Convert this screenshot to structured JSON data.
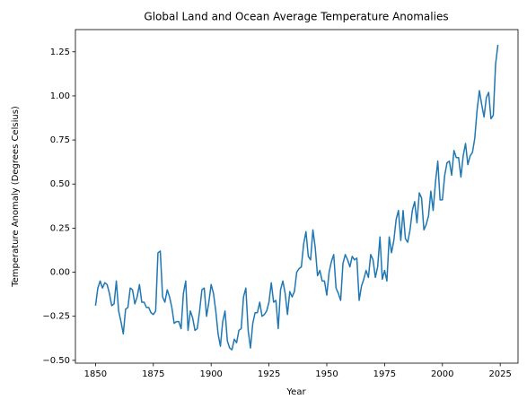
{
  "chart_data": {
    "type": "line",
    "title": "Global Land and Ocean Average Temperature Anomalies",
    "xlabel": "Year",
    "ylabel": "Temperature Anomaly (Degrees Celsius)",
    "x": [
      1850,
      1851,
      1852,
      1853,
      1854,
      1855,
      1856,
      1857,
      1858,
      1859,
      1860,
      1861,
      1862,
      1863,
      1864,
      1865,
      1866,
      1867,
      1868,
      1869,
      1870,
      1871,
      1872,
      1873,
      1874,
      1875,
      1876,
      1877,
      1878,
      1879,
      1880,
      1881,
      1882,
      1883,
      1884,
      1885,
      1886,
      1887,
      1888,
      1889,
      1890,
      1891,
      1892,
      1893,
      1894,
      1895,
      1896,
      1897,
      1898,
      1899,
      1900,
      1901,
      1902,
      1903,
      1904,
      1905,
      1906,
      1907,
      1908,
      1909,
      1910,
      1911,
      1912,
      1913,
      1914,
      1915,
      1916,
      1917,
      1918,
      1919,
      1920,
      1921,
      1922,
      1923,
      1924,
      1925,
      1926,
      1927,
      1928,
      1929,
      1930,
      1931,
      1932,
      1933,
      1934,
      1935,
      1936,
      1937,
      1938,
      1939,
      1940,
      1941,
      1942,
      1943,
      1944,
      1945,
      1946,
      1947,
      1948,
      1949,
      1950,
      1951,
      1952,
      1953,
      1954,
      1955,
      1956,
      1957,
      1958,
      1959,
      1960,
      1961,
      1962,
      1963,
      1964,
      1965,
      1966,
      1967,
      1968,
      1969,
      1970,
      1971,
      1972,
      1973,
      1974,
      1975,
      1976,
      1977,
      1978,
      1979,
      1980,
      1981,
      1982,
      1983,
      1984,
      1985,
      1986,
      1987,
      1988,
      1989,
      1990,
      1991,
      1992,
      1993,
      1994,
      1995,
      1996,
      1997,
      1998,
      1999,
      2000,
      2001,
      2002,
      2003,
      2004,
      2005,
      2006,
      2007,
      2008,
      2009,
      2010,
      2011,
      2012,
      2013,
      2014,
      2015,
      2016,
      2017,
      2018,
      2019,
      2020,
      2021,
      2022,
      2023,
      2024
    ],
    "series": [
      {
        "name": "Temperature Anomaly",
        "color": "#1f77b4",
        "values": [
          -0.19,
          -0.09,
          -0.05,
          -0.09,
          -0.06,
          -0.07,
          -0.12,
          -0.19,
          -0.18,
          -0.05,
          -0.22,
          -0.28,
          -0.35,
          -0.21,
          -0.2,
          -0.09,
          -0.1,
          -0.18,
          -0.14,
          -0.07,
          -0.17,
          -0.17,
          -0.2,
          -0.2,
          -0.23,
          -0.24,
          -0.22,
          0.11,
          0.12,
          -0.14,
          -0.17,
          -0.1,
          -0.14,
          -0.2,
          -0.29,
          -0.28,
          -0.28,
          -0.32,
          -0.12,
          -0.05,
          -0.33,
          -0.22,
          -0.26,
          -0.33,
          -0.32,
          -0.22,
          -0.1,
          -0.09,
          -0.25,
          -0.17,
          -0.07,
          -0.12,
          -0.22,
          -0.35,
          -0.42,
          -0.28,
          -0.22,
          -0.39,
          -0.43,
          -0.44,
          -0.38,
          -0.4,
          -0.33,
          -0.32,
          -0.14,
          -0.09,
          -0.33,
          -0.43,
          -0.29,
          -0.23,
          -0.23,
          -0.17,
          -0.25,
          -0.24,
          -0.22,
          -0.17,
          -0.06,
          -0.17,
          -0.16,
          -0.32,
          -0.1,
          -0.05,
          -0.12,
          -0.24,
          -0.11,
          -0.14,
          -0.11,
          0.0,
          0.02,
          0.03,
          0.16,
          0.23,
          0.09,
          0.07,
          0.24,
          0.14,
          -0.02,
          0.01,
          -0.05,
          -0.05,
          -0.13,
          0.0,
          0.06,
          0.1,
          -0.09,
          -0.12,
          -0.16,
          0.05,
          0.1,
          0.07,
          0.03,
          0.09,
          0.07,
          0.08,
          -0.16,
          -0.08,
          -0.04,
          0.01,
          -0.03,
          0.1,
          0.07,
          -0.03,
          0.03,
          0.2,
          -0.04,
          0.01,
          -0.05,
          0.2,
          0.11,
          0.18,
          0.3,
          0.35,
          0.18,
          0.35,
          0.19,
          0.17,
          0.24,
          0.35,
          0.4,
          0.28,
          0.45,
          0.42,
          0.24,
          0.27,
          0.32,
          0.46,
          0.35,
          0.51,
          0.63,
          0.41,
          0.41,
          0.55,
          0.62,
          0.63,
          0.55,
          0.69,
          0.65,
          0.65,
          0.54,
          0.66,
          0.73,
          0.61,
          0.66,
          0.68,
          0.76,
          0.92,
          1.03,
          0.95,
          0.88,
          0.99,
          1.02,
          0.87,
          0.89,
          1.18,
          1.29
        ]
      }
    ],
    "xlim": [
      1841.3,
      2032.7
    ],
    "ylim": [
      -0.516,
      1.376
    ],
    "xticks": [
      1850,
      1875,
      1900,
      1925,
      1950,
      1975,
      2000,
      2025
    ],
    "yticks": [
      {
        "value": -0.5,
        "label": "−0.50"
      },
      {
        "value": -0.25,
        "label": "−0.25"
      },
      {
        "value": 0,
        "label": "0.00"
      },
      {
        "value": 0.25,
        "label": "0.25"
      },
      {
        "value": 0.5,
        "label": "0.50"
      },
      {
        "value": 0.75,
        "label": "0.75"
      },
      {
        "value": 1,
        "label": "1.00"
      },
      {
        "value": 1.25,
        "label": "1.25"
      }
    ],
    "grid": false
  }
}
